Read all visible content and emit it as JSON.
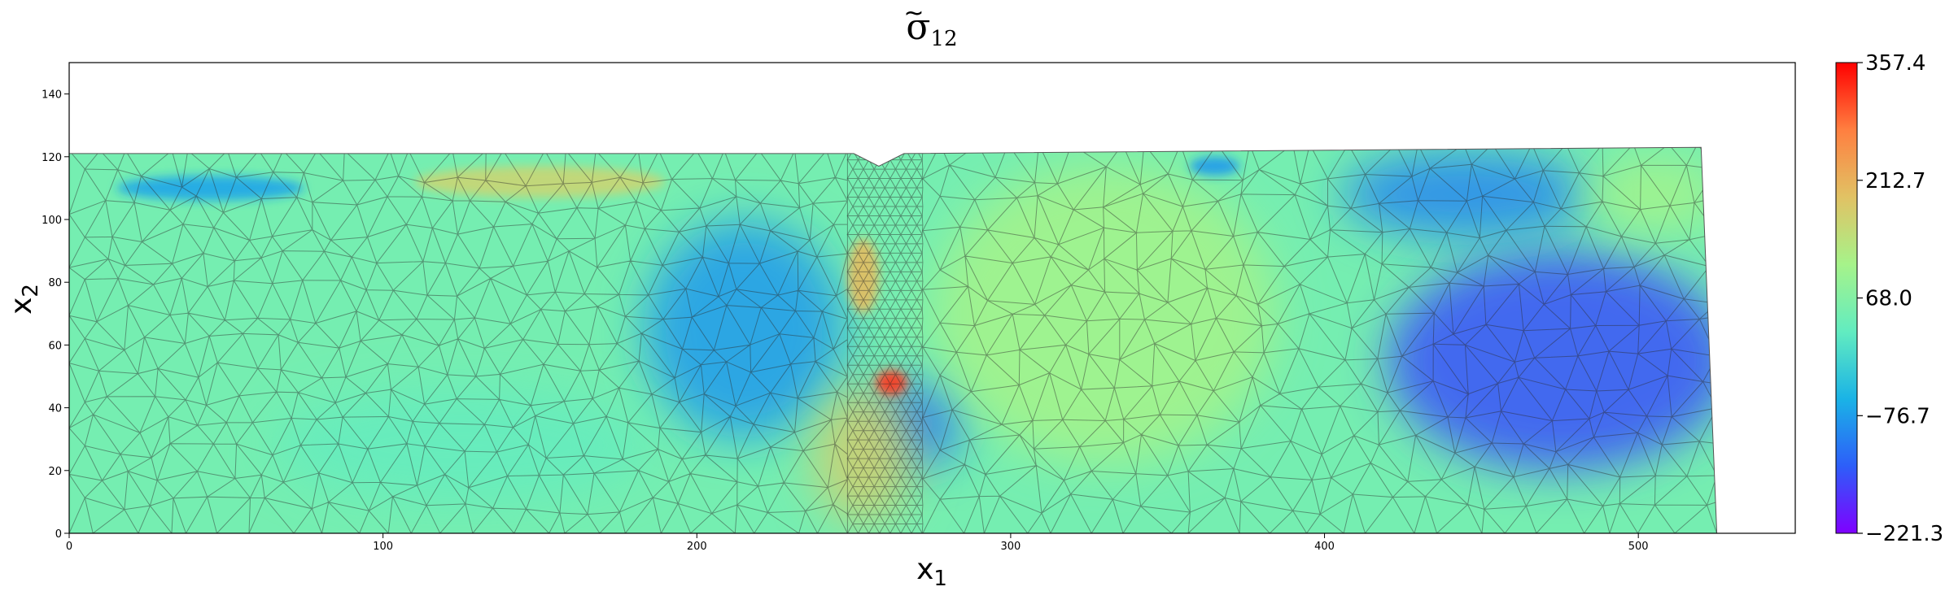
{
  "chart_data": {
    "type": "heatmap",
    "title": {
      "symbol": "σ",
      "accent": "~",
      "subscript": "12"
    },
    "xlabel": {
      "main": "x",
      "sub": "1"
    },
    "ylabel": {
      "main": "x",
      "sub": "2"
    },
    "xlim": [
      0,
      550
    ],
    "ylim": [
      0,
      150
    ],
    "xticks": [
      {
        "value": 0,
        "label": "0"
      },
      {
        "value": 100,
        "label": "100"
      },
      {
        "value": 200,
        "label": "200"
      },
      {
        "value": 300,
        "label": "300"
      },
      {
        "value": 400,
        "label": "400"
      },
      {
        "value": 500,
        "label": "500"
      }
    ],
    "yticks": [
      {
        "value": 0,
        "label": "0"
      },
      {
        "value": 20,
        "label": "20"
      },
      {
        "value": 40,
        "label": "40"
      },
      {
        "value": 60,
        "label": "60"
      },
      {
        "value": 80,
        "label": "80"
      },
      {
        "value": 100,
        "label": "100"
      },
      {
        "value": 120,
        "label": "120"
      },
      {
        "value": 140,
        "label": "140"
      }
    ],
    "grid": false,
    "colormap": "rainbow",
    "colorbar": {
      "min": -221.3,
      "max": 357.4,
      "ticks": [
        {
          "value": 357.4,
          "label": "357.4"
        },
        {
          "value": 212.7,
          "label": "212.7"
        },
        {
          "value": 68.0,
          "label": "68.0"
        },
        {
          "value": -76.7,
          "label": "−76.7"
        },
        {
          "value": -221.3,
          "label": "−221.3"
        }
      ]
    },
    "domain_outline": [
      [
        0,
        121
      ],
      [
        250,
        121
      ],
      [
        258,
        117
      ],
      [
        266,
        121
      ],
      [
        520,
        123
      ],
      [
        525,
        0
      ],
      [
        0,
        0
      ]
    ],
    "background_value": 50,
    "field_features": [
      {
        "x": 475,
        "y": 55,
        "value": -150,
        "rx": 55,
        "ry": 35
      },
      {
        "x": 445,
        "y": 108,
        "value": -100,
        "rx": 40,
        "ry": 14
      },
      {
        "x": 215,
        "y": 65,
        "value": -80,
        "rx": 32,
        "ry": 35
      },
      {
        "x": 270,
        "y": 35,
        "value": -110,
        "rx": 15,
        "ry": 14
      },
      {
        "x": 125,
        "y": 28,
        "value": 30,
        "rx": 60,
        "ry": 18
      },
      {
        "x": 330,
        "y": 70,
        "value": 110,
        "rx": 55,
        "ry": 48
      },
      {
        "x": 253,
        "y": 25,
        "value": 170,
        "rx": 16,
        "ry": 22
      },
      {
        "x": 262,
        "y": 48,
        "value": 320,
        "rx": 5,
        "ry": 4
      },
      {
        "x": 253,
        "y": 82,
        "value": 200,
        "rx": 5,
        "ry": 12
      },
      {
        "x": 150,
        "y": 112,
        "value": 160,
        "rx": 40,
        "ry": 5
      },
      {
        "x": 45,
        "y": 110,
        "value": -70,
        "rx": 30,
        "ry": 4
      },
      {
        "x": 505,
        "y": 108,
        "value": 110,
        "rx": 22,
        "ry": 12
      },
      {
        "x": 365,
        "y": 117,
        "value": -80,
        "rx": 8,
        "ry": 3
      }
    ],
    "colorbar_color_stops": [
      "#7f00ff",
      "#2d5ef9",
      "#1ab3e6",
      "#62ecc0",
      "#a6f38a",
      "#e1c264",
      "#ff7f40",
      "#ff0000"
    ]
  }
}
